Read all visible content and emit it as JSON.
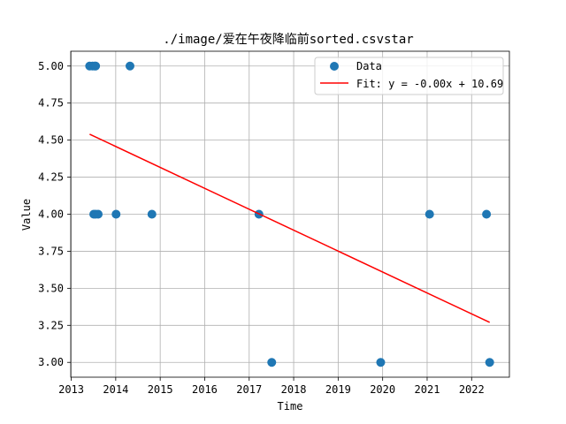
{
  "chart_data": {
    "type": "scatter",
    "title": "./image/爱在午夜降临前sorted.csvstar",
    "xlabel": "Time",
    "ylabel": "Value",
    "xlim": [
      "2012-12-28",
      "2022-11-07"
    ],
    "ylim": [
      2.9,
      5.1
    ],
    "x_ticks": [
      "2013",
      "2014",
      "2015",
      "2016",
      "2017",
      "2018",
      "2019",
      "2020",
      "2021",
      "2022"
    ],
    "y_ticks": [
      "3.00",
      "3.25",
      "3.50",
      "3.75",
      "4.00",
      "4.25",
      "4.50",
      "4.75",
      "5.00"
    ],
    "grid": true,
    "legend_position": "top-right",
    "series": [
      {
        "name": "Data",
        "kind": "scatter",
        "color": "#1f77b4",
        "points": [
          {
            "x": "2013-06-01",
            "y": 5.0
          },
          {
            "x": "2013-06-25",
            "y": 5.0
          },
          {
            "x": "2013-07-12",
            "y": 5.0
          },
          {
            "x": "2013-07-20",
            "y": 5.0
          },
          {
            "x": "2014-04-28",
            "y": 5.0
          },
          {
            "x": "2013-07-05",
            "y": 4.0
          },
          {
            "x": "2013-07-20",
            "y": 4.0
          },
          {
            "x": "2013-08-10",
            "y": 4.0
          },
          {
            "x": "2014-01-04",
            "y": 4.0
          },
          {
            "x": "2014-10-25",
            "y": 4.0
          },
          {
            "x": "2017-03-22",
            "y": 4.0
          },
          {
            "x": "2017-07-05",
            "y": 3.0
          },
          {
            "x": "2019-12-16",
            "y": 3.0
          },
          {
            "x": "2021-01-21",
            "y": 4.0
          },
          {
            "x": "2022-05-03",
            "y": 4.0
          },
          {
            "x": "2022-05-29",
            "y": 3.0
          }
        ]
      },
      {
        "name": "Fit: y = -0.00x + 10.69",
        "kind": "line",
        "color": "#ff0000",
        "points": [
          {
            "x": "2013-06-01",
            "y": 4.54
          },
          {
            "x": "2022-05-29",
            "y": 3.27
          }
        ]
      }
    ]
  }
}
